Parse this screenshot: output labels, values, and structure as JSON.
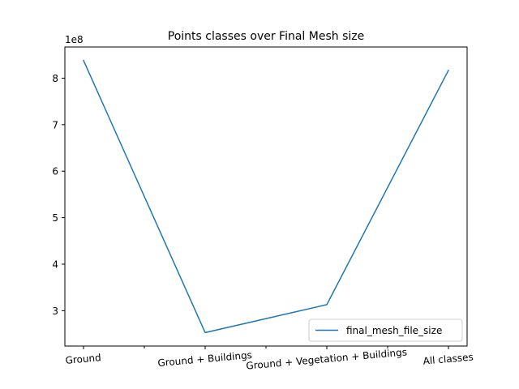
{
  "chart_data": {
    "type": "line",
    "title": "Points classes over Final Mesh size",
    "xlabel": "",
    "ylabel": "",
    "y_multiplier_label": "1e8",
    "categories": [
      "Ground",
      "Ground + Buildings",
      "Ground + Vegetation + Buildings",
      "All classes"
    ],
    "series": [
      {
        "name": "final_mesh_file_size",
        "color": "#1f77b4",
        "values": [
          838000000,
          253000000,
          313000000,
          817000000
        ]
      }
    ],
    "yticks": [
      300000000,
      400000000,
      500000000,
      600000000,
      700000000,
      800000000
    ],
    "ytick_labels": [
      "3",
      "4",
      "5",
      "6",
      "7",
      "8"
    ],
    "ylim": [
      224000000,
      867000000
    ],
    "xtick_rotation_deg": -5,
    "legend": "lower-right",
    "grid": false
  }
}
